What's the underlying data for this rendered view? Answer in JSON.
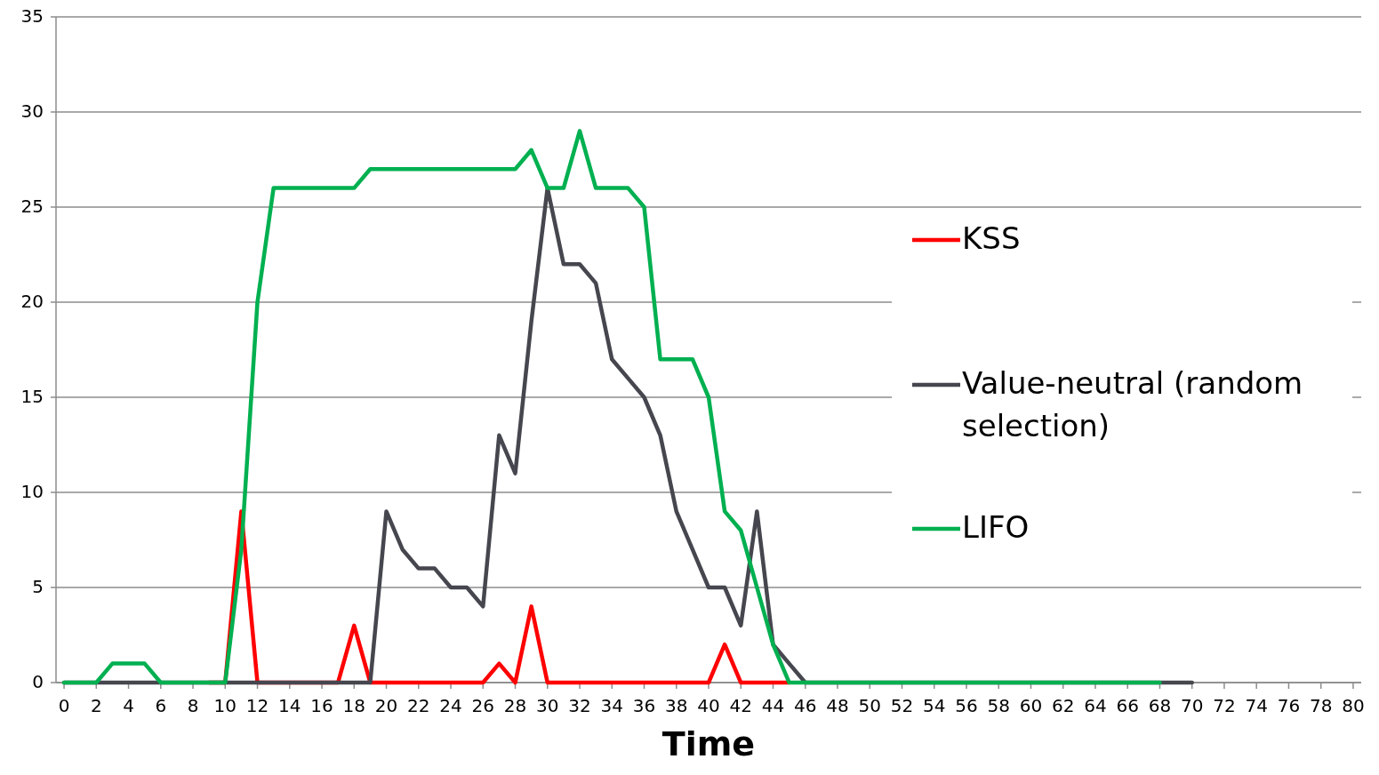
{
  "chart_data": {
    "type": "line",
    "xlabel": "Time",
    "x": [
      0,
      1,
      2,
      3,
      4,
      5,
      6,
      7,
      8,
      9,
      10,
      11,
      12,
      13,
      14,
      15,
      16,
      17,
      18,
      19,
      20,
      21,
      22,
      23,
      24,
      25,
      26,
      27,
      28,
      29,
      30,
      31,
      32,
      33,
      34,
      35,
      36,
      37,
      38,
      39,
      40,
      41,
      42,
      43,
      44,
      45,
      46,
      47,
      48,
      49,
      50,
      51,
      52,
      53,
      54,
      55,
      56,
      57,
      58,
      59,
      60,
      61,
      62,
      63,
      64,
      65,
      66,
      67,
      68,
      69,
      70
    ],
    "series": [
      {
        "name": "KSS",
        "color": "#ff0000",
        "x": [
          9,
          10,
          11,
          12,
          13,
          14,
          15,
          16,
          17,
          18,
          19,
          20,
          21,
          22,
          23,
          24,
          25,
          26,
          27,
          28,
          29,
          30,
          31,
          32,
          33,
          34,
          35,
          36,
          37,
          38,
          39,
          40,
          41,
          42,
          43,
          44,
          45
        ],
        "values": [
          0,
          0,
          9,
          0,
          0,
          0,
          0,
          0,
          0,
          3,
          0,
          0,
          0,
          0,
          0,
          0,
          0,
          0,
          1,
          0,
          4,
          0,
          0,
          0,
          0,
          0,
          0,
          0,
          0,
          0,
          0,
          0,
          2,
          0,
          0,
          0,
          0
        ]
      },
      {
        "name": "Value-neutral (random selection)",
        "color": "#46464f",
        "values": [
          0,
          0,
          0,
          0,
          0,
          0,
          0,
          0,
          0,
          0,
          0,
          0,
          0,
          0,
          0,
          0,
          0,
          0,
          0,
          0,
          9,
          7,
          6,
          6,
          5,
          5,
          4,
          13,
          11,
          19,
          26,
          22,
          22,
          21,
          17,
          16,
          15,
          13,
          9,
          7,
          5,
          5,
          3,
          9,
          2,
          1,
          0,
          0,
          0,
          0,
          0,
          0,
          0,
          0,
          0,
          0,
          0,
          0,
          0,
          0,
          0,
          0,
          0,
          0,
          0,
          0,
          0,
          0,
          0,
          0,
          0
        ]
      },
      {
        "name": "LIFO",
        "color": "#00b050",
        "x": [
          0,
          1,
          2,
          3,
          4,
          5,
          6,
          7,
          8,
          9,
          10,
          11,
          12,
          13,
          14,
          15,
          16,
          17,
          18,
          19,
          20,
          21,
          22,
          23,
          24,
          25,
          26,
          27,
          28,
          29,
          30,
          31,
          32,
          33,
          34,
          35,
          36,
          37,
          38,
          39,
          40,
          41,
          42,
          43,
          44,
          45,
          46,
          47,
          48,
          49,
          50,
          51,
          52,
          53,
          54,
          55,
          56,
          57,
          58,
          59,
          60,
          61,
          62,
          63,
          64,
          65,
          66,
          67,
          68
        ],
        "values": [
          0,
          0,
          0,
          1,
          1,
          1,
          0,
          0,
          0,
          0,
          0,
          7,
          20,
          26,
          26,
          26,
          26,
          26,
          26,
          27,
          27,
          27,
          27,
          27,
          27,
          27,
          27,
          27,
          27,
          28,
          26,
          26,
          29,
          26,
          26,
          26,
          25,
          17,
          17,
          17,
          15,
          9,
          8,
          5,
          2,
          0,
          0,
          0,
          0,
          0,
          0,
          0,
          0,
          0,
          0,
          0,
          0,
          0,
          0,
          0,
          0,
          0,
          0,
          0,
          0,
          0,
          0,
          0,
          0
        ]
      }
    ],
    "xlim": [
      -0.5,
      80.5
    ],
    "xticks": [
      0,
      2,
      4,
      6,
      8,
      10,
      12,
      14,
      16,
      18,
      20,
      22,
      24,
      26,
      28,
      30,
      32,
      34,
      36,
      38,
      40,
      42,
      44,
      46,
      48,
      50,
      52,
      54,
      56,
      58,
      60,
      62,
      64,
      66,
      68,
      70,
      72,
      74,
      76,
      78,
      80
    ],
    "ylim": [
      0,
      35
    ],
    "yticks": [
      0,
      5,
      10,
      15,
      20,
      25,
      30,
      35
    ],
    "grid": "y",
    "legend": "right",
    "marker": "none",
    "line_style": "solid"
  }
}
